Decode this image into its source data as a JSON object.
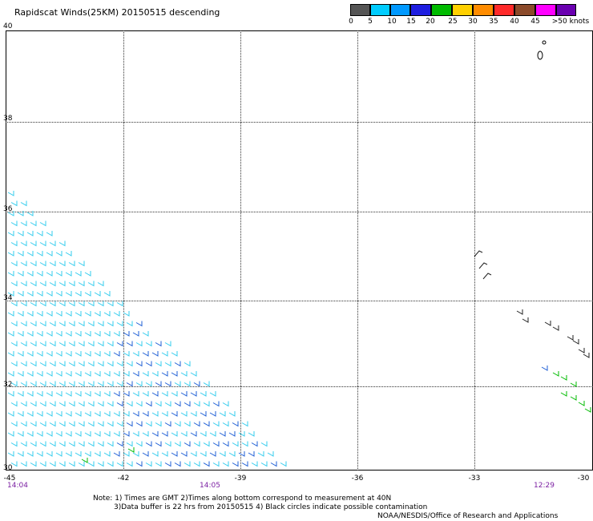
{
  "title": "Rapidscat Winds(25KM)  20150515 descending",
  "scale": {
    "labels": [
      "0",
      "5",
      "10",
      "15",
      "20",
      "25",
      "30",
      "35",
      "40",
      "45",
      ">50 knots"
    ],
    "colors": [
      "#555555",
      "#00ccff",
      "#0099ff",
      "#1e1ee0",
      "#00bb00",
      "#ffd000",
      "#ff8c00",
      "#ff2a2a",
      "#8b4a2a",
      "#ff00ff",
      "#6a00b0"
    ]
  },
  "axes": {
    "lat_labels": [
      "40",
      "38",
      "36",
      "34",
      "32",
      "30"
    ],
    "lon_labels": [
      "-45",
      "-42",
      "-39",
      "-36",
      "-33",
      "-30"
    ],
    "time_labels": [
      "14:04",
      "14:05",
      "12:29"
    ]
  },
  "notes": {
    "line1": "Note: 1) Times are GMT 2)Times along bottom correspond to measurement at 40N",
    "line2": "3)Data buffer is 22 hrs from 20150515 4) Black circles indicate possible contamination",
    "credit": "NOAA/NESDIS/Office of Research and Applications"
  }
}
